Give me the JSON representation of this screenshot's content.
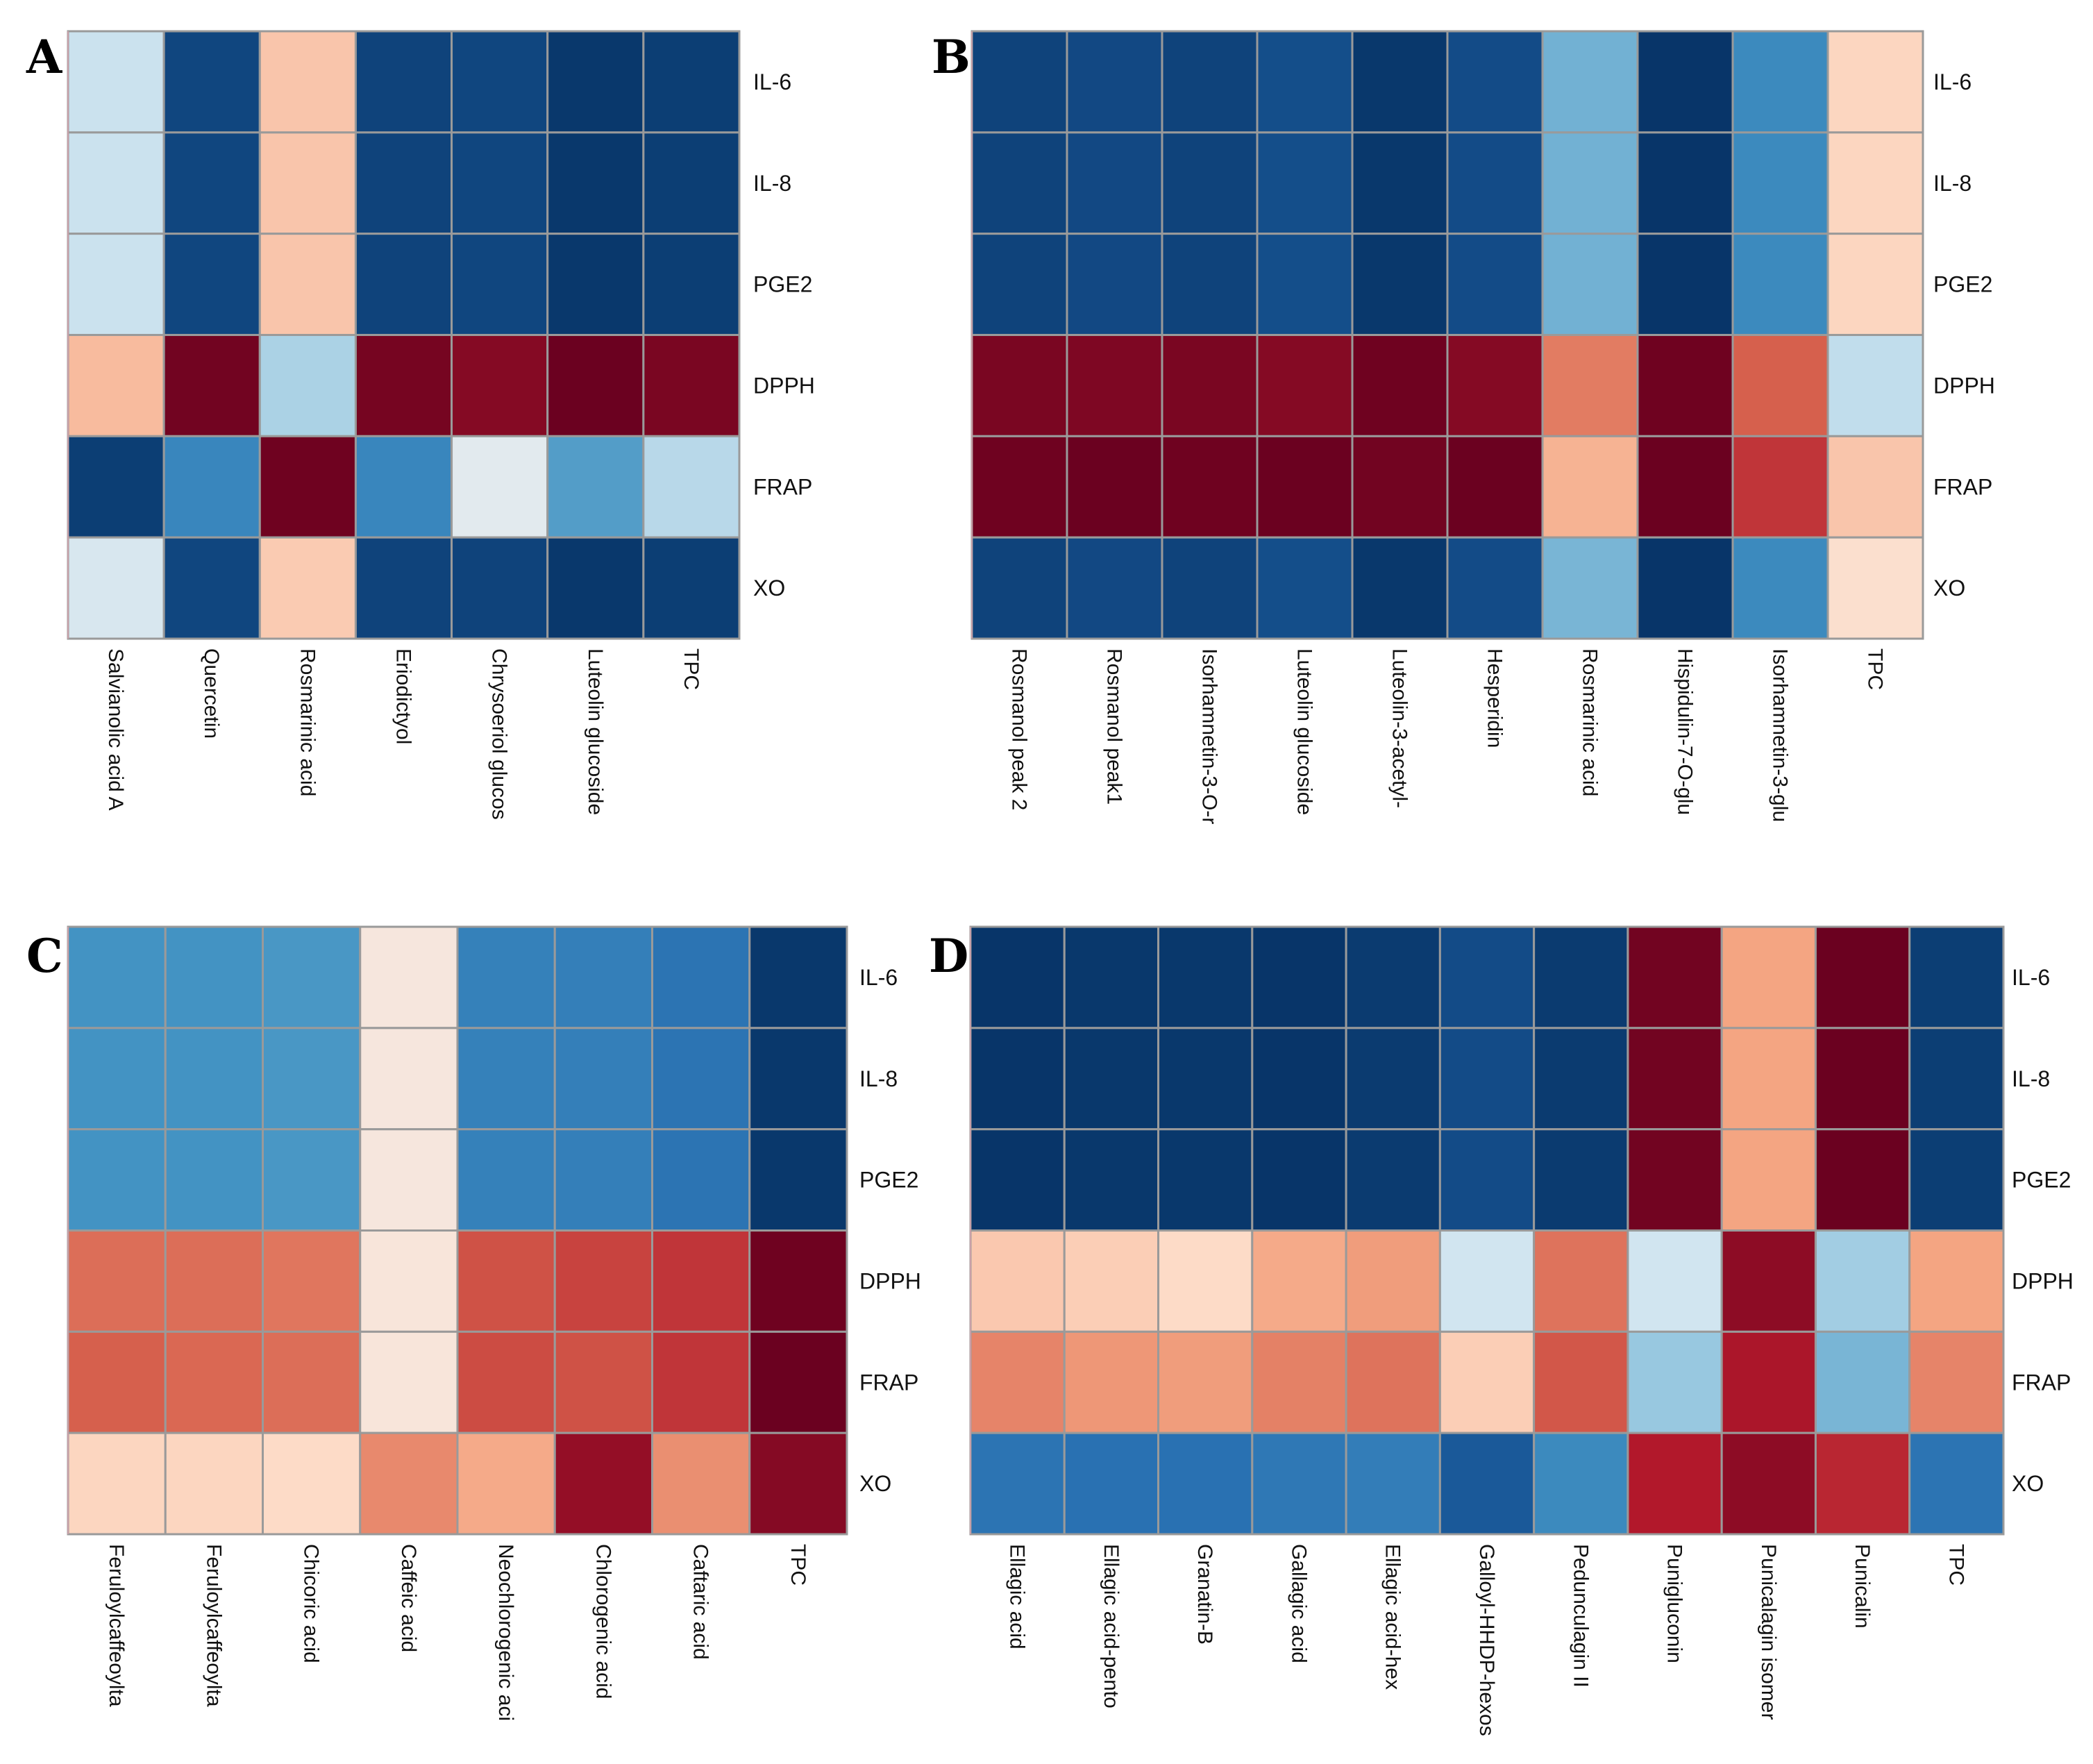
{
  "colors": {
    "scale_low": "#053061",
    "scale_mid": "#f2f2f2",
    "scale_high": "#67001f"
  },
  "chart_data": [
    {
      "type": "heatmap",
      "panel": "A",
      "rows": [
        "IL-6",
        "IL-8",
        "PGE2",
        "DPPH",
        "FRAP",
        "XO"
      ],
      "columns": [
        "Salvianolic acid A",
        "Quercetin",
        "Rosmarinic acid",
        "Eriodictyol",
        "Chrysoeriol glucos",
        "Luteolin glucoside",
        "TPC"
      ],
      "vrange": [
        -1,
        1
      ],
      "values": [
        [
          -0.12,
          -0.92,
          0.18,
          -0.93,
          -0.92,
          -0.97,
          -0.95
        ],
        [
          -0.12,
          -0.92,
          0.18,
          -0.93,
          -0.92,
          -0.97,
          -0.95
        ],
        [
          -0.12,
          -0.92,
          0.18,
          -0.93,
          -0.92,
          -0.97,
          -0.95
        ],
        [
          0.22,
          0.97,
          -0.22,
          0.96,
          0.92,
          0.99,
          0.95
        ],
        [
          -0.95,
          -0.62,
          0.98,
          -0.62,
          -0.05,
          -0.5,
          -0.18
        ],
        [
          -0.08,
          -0.92,
          0.16,
          -0.93,
          -0.93,
          -0.97,
          -0.95
        ]
      ]
    },
    {
      "type": "heatmap",
      "panel": "B",
      "rows": [
        "IL-6",
        "IL-8",
        "PGE2",
        "DPPH",
        "FRAP",
        "XO"
      ],
      "columns": [
        "Rosmanol peak 2",
        "Rosmanol peak1",
        "Isorhamnetin-3-O-r",
        "Luteolin glucoside",
        "Luteolin-3-acetyl-",
        "Hesperidin",
        "Rosmarinic acid",
        "Hispidulin-7-O-glu",
        "Isorhamnetin-3-glu",
        "TPC"
      ],
      "vrange": [
        -1,
        1
      ],
      "values": [
        [
          -0.93,
          -0.91,
          -0.93,
          -0.89,
          -0.97,
          -0.9,
          -0.4,
          -0.98,
          -0.6,
          0.12
        ],
        [
          -0.93,
          -0.91,
          -0.93,
          -0.89,
          -0.97,
          -0.9,
          -0.4,
          -0.98,
          -0.6,
          0.12
        ],
        [
          -0.93,
          -0.91,
          -0.93,
          -0.89,
          -0.97,
          -0.9,
          -0.4,
          -0.98,
          -0.6,
          0.12
        ],
        [
          0.95,
          0.94,
          0.95,
          0.92,
          0.98,
          0.92,
          0.45,
          0.98,
          0.55,
          -0.15
        ],
        [
          0.98,
          0.99,
          0.98,
          0.99,
          0.97,
          0.99,
          0.25,
          0.99,
          0.7,
          0.18
        ],
        [
          -0.93,
          -0.91,
          -0.93,
          -0.89,
          -0.97,
          -0.9,
          -0.38,
          -0.98,
          -0.6,
          0.08
        ]
      ]
    },
    {
      "type": "heatmap",
      "panel": "C",
      "rows": [
        "IL-6",
        "IL-8",
        "PGE2",
        "DPPH",
        "FRAP",
        "XO"
      ],
      "columns": [
        "Feruloylcaffeoylta",
        "Feruloylcaffeoylta",
        "Chicoric acid",
        "Caffeic acid",
        "Neochlorogenic aci",
        "Chlorogenic acid",
        "Caftaric acid",
        "TPC"
      ],
      "vrange": [
        -1,
        1
      ],
      "values": [
        [
          -0.55,
          -0.55,
          -0.53,
          0.04,
          -0.65,
          -0.66,
          -0.72,
          -0.97
        ],
        [
          -0.55,
          -0.55,
          -0.53,
          0.04,
          -0.65,
          -0.66,
          -0.72,
          -0.97
        ],
        [
          -0.55,
          -0.55,
          -0.53,
          0.04,
          -0.65,
          -0.66,
          -0.72,
          -0.97
        ],
        [
          0.5,
          0.5,
          0.47,
          0.05,
          0.6,
          0.65,
          0.7,
          0.98
        ],
        [
          0.55,
          0.52,
          0.5,
          0.05,
          0.62,
          0.6,
          0.7,
          0.99
        ],
        [
          0.12,
          0.12,
          0.1,
          0.4,
          0.28,
          0.88,
          0.38,
          0.92
        ]
      ]
    },
    {
      "type": "heatmap",
      "panel": "D",
      "rows": [
        "IL-6",
        "IL-8",
        "PGE2",
        "DPPH",
        "FRAP",
        "XO"
      ],
      "columns": [
        "Ellagic acid",
        "Ellagic acid-pento",
        "Granatin-B",
        "Gallagic acid",
        "Ellagic acid-hex",
        "Galloyl-HHDP-hexos",
        "Pedunculagin II",
        "Punigluconin",
        "Punicalagin isomer",
        "Punicalin",
        "TPC"
      ],
      "vrange": [
        -1,
        1
      ],
      "values": [
        [
          -0.98,
          -0.97,
          -0.97,
          -0.98,
          -0.96,
          -0.9,
          -0.96,
          0.97,
          0.3,
          0.99,
          -0.95
        ],
        [
          -0.98,
          -0.97,
          -0.97,
          -0.98,
          -0.96,
          -0.9,
          -0.96,
          0.97,
          0.3,
          0.99,
          -0.95
        ],
        [
          -0.98,
          -0.97,
          -0.97,
          -0.98,
          -0.96,
          -0.9,
          -0.96,
          0.97,
          0.3,
          0.99,
          -0.95
        ],
        [
          0.17,
          0.15,
          0.1,
          0.28,
          0.33,
          -0.1,
          0.48,
          -0.1,
          0.9,
          -0.25,
          0.3
        ],
        [
          0.42,
          0.35,
          0.33,
          0.43,
          0.48,
          0.15,
          0.58,
          -0.28,
          0.82,
          -0.38,
          0.42
        ],
        [
          -0.72,
          -0.74,
          -0.74,
          -0.7,
          -0.67,
          -0.85,
          -0.6,
          0.8,
          0.9,
          0.75,
          -0.72
        ]
      ]
    }
  ]
}
